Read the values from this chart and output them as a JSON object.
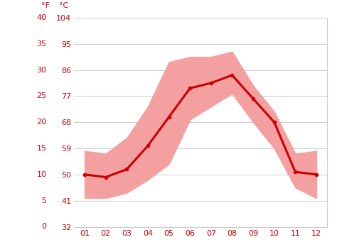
{
  "months": [
    1,
    2,
    3,
    4,
    5,
    6,
    7,
    8,
    9,
    10,
    11,
    12
  ],
  "month_labels": [
    "01",
    "02",
    "03",
    "04",
    "05",
    "06",
    "07",
    "08",
    "09",
    "10",
    "11",
    "12"
  ],
  "avg_temp_c": [
    10.0,
    9.5,
    11.0,
    15.5,
    21.0,
    26.5,
    27.5,
    29.0,
    24.5,
    20.0,
    10.5,
    10.0
  ],
  "max_temp_c": [
    14.5,
    14.0,
    17.0,
    23.0,
    31.5,
    32.5,
    32.5,
    33.5,
    27.0,
    22.0,
    14.0,
    14.5
  ],
  "min_temp_c": [
    5.5,
    5.5,
    6.5,
    9.0,
    12.0,
    20.5,
    23.0,
    25.5,
    20.0,
    15.0,
    7.5,
    5.5
  ],
  "line_color": "#cc0000",
  "band_color": "#f5a0a0",
  "axis_color": "#cc0000",
  "grid_color": "#cccccc",
  "background_color": "#ffffff",
  "ylim_c": [
    0,
    40
  ],
  "yticks_c": [
    0,
    5,
    10,
    15,
    20,
    25,
    30,
    35,
    40
  ],
  "yticks_f": [
    32,
    41,
    50,
    59,
    68,
    77,
    86,
    95,
    104
  ],
  "left_label_f": "°F",
  "left_label_c": "°C",
  "label_fontsize": 8,
  "tick_fontsize": 8,
  "line_width": 2.2
}
